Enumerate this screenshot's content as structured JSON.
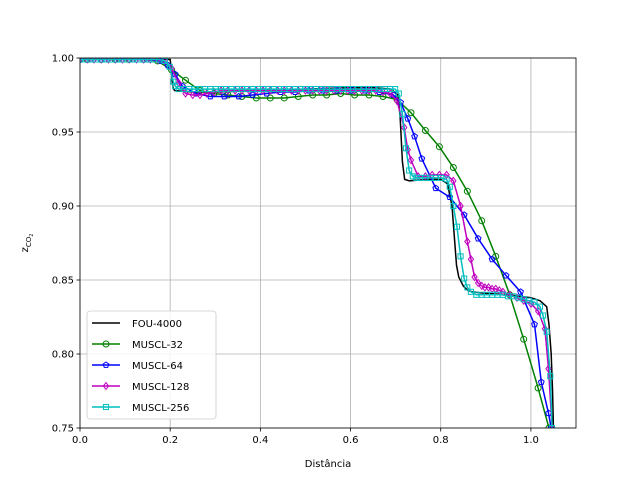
{
  "chart_data": {
    "type": "line",
    "xlabel": "Distância",
    "ylabel_main": "z",
    "ylabel_sub": "CO",
    "ylabel_subsub": "2",
    "xlim": [
      0.0,
      1.1
    ],
    "ylim": [
      0.75,
      1.0
    ],
    "xticks": [
      0.0,
      0.2,
      0.4,
      0.6,
      0.8,
      1.0
    ],
    "xtick_labels": [
      "0.0",
      "0.2",
      "0.4",
      "0.6",
      "0.8",
      "1.0"
    ],
    "yticks": [
      0.75,
      0.8,
      0.85,
      0.9,
      0.95,
      1.0
    ],
    "ytick_labels": [
      "0.75",
      "0.80",
      "0.85",
      "0.90",
      "0.95",
      "1.00"
    ],
    "grid": true,
    "legend_position": "lower-left",
    "series": [
      {
        "name": "FOU-4000",
        "color": "#000000",
        "marker": "none",
        "x": [
          0.0,
          0.2,
          0.203,
          0.206,
          0.21,
          0.25,
          0.3,
          0.4,
          0.5,
          0.6,
          0.65,
          0.69,
          0.705,
          0.71,
          0.715,
          0.72,
          0.73,
          0.77,
          0.8,
          0.815,
          0.825,
          0.83,
          0.835,
          0.84,
          0.85,
          0.86,
          0.87,
          0.9,
          0.95,
          1.0,
          1.02,
          1.035,
          1.04,
          1.045,
          1.048,
          1.05
        ],
        "y": [
          0.999,
          0.999,
          0.99,
          0.98,
          0.978,
          0.977,
          0.977,
          0.978,
          0.979,
          0.98,
          0.98,
          0.979,
          0.975,
          0.96,
          0.93,
          0.918,
          0.917,
          0.918,
          0.918,
          0.915,
          0.9,
          0.88,
          0.86,
          0.852,
          0.846,
          0.843,
          0.842,
          0.841,
          0.84,
          0.838,
          0.836,
          0.832,
          0.82,
          0.8,
          0.775,
          0.75
        ]
      },
      {
        "name": "MUSCL-32",
        "color": "#008000",
        "marker": "circle",
        "x": [
          0.0,
          0.016,
          0.047,
          0.078,
          0.109,
          0.141,
          0.172,
          0.203,
          0.234,
          0.266,
          0.297,
          0.328,
          0.359,
          0.391,
          0.422,
          0.453,
          0.484,
          0.516,
          0.547,
          0.578,
          0.609,
          0.641,
          0.672,
          0.703,
          0.734,
          0.766,
          0.797,
          0.828,
          0.859,
          0.891,
          0.922,
          0.953,
          0.984,
          1.016,
          1.04
        ],
        "y": [
          0.999,
          0.999,
          0.999,
          0.999,
          0.999,
          0.999,
          0.998,
          0.992,
          0.985,
          0.978,
          0.976,
          0.975,
          0.974,
          0.973,
          0.973,
          0.973,
          0.974,
          0.975,
          0.975,
          0.976,
          0.975,
          0.975,
          0.974,
          0.972,
          0.963,
          0.951,
          0.94,
          0.926,
          0.91,
          0.89,
          0.866,
          0.84,
          0.81,
          0.777,
          0.75
        ]
      },
      {
        "name": "MUSCL-64",
        "color": "#0000ff",
        "marker": "pentagon",
        "x": [
          0.0,
          0.023,
          0.055,
          0.086,
          0.117,
          0.148,
          0.18,
          0.195,
          0.211,
          0.227,
          0.258,
          0.289,
          0.32,
          0.352,
          0.383,
          0.414,
          0.445,
          0.477,
          0.508,
          0.539,
          0.57,
          0.602,
          0.633,
          0.664,
          0.695,
          0.711,
          0.727,
          0.742,
          0.758,
          0.789,
          0.82,
          0.852,
          0.883,
          0.914,
          0.945,
          0.977,
          1.008,
          1.023,
          1.039,
          1.045
        ],
        "y": [
          0.999,
          0.999,
          0.999,
          0.999,
          0.999,
          0.999,
          0.998,
          0.995,
          0.989,
          0.981,
          0.976,
          0.974,
          0.974,
          0.974,
          0.975,
          0.976,
          0.977,
          0.977,
          0.978,
          0.978,
          0.978,
          0.978,
          0.978,
          0.977,
          0.975,
          0.97,
          0.959,
          0.947,
          0.932,
          0.912,
          0.906,
          0.894,
          0.878,
          0.864,
          0.853,
          0.842,
          0.82,
          0.781,
          0.76,
          0.75
        ]
      },
      {
        "name": "MUSCL-128",
        "color": "#bf00bf",
        "marker": "diamond",
        "x": [
          0.0,
          0.016,
          0.031,
          0.047,
          0.063,
          0.078,
          0.094,
          0.109,
          0.125,
          0.141,
          0.156,
          0.172,
          0.188,
          0.203,
          0.219,
          0.234,
          0.25,
          0.266,
          0.281,
          0.297,
          0.313,
          0.328,
          0.344,
          0.359,
          0.375,
          0.391,
          0.406,
          0.422,
          0.438,
          0.453,
          0.469,
          0.484,
          0.5,
          0.516,
          0.531,
          0.547,
          0.563,
          0.578,
          0.594,
          0.609,
          0.625,
          0.641,
          0.656,
          0.672,
          0.688,
          0.703,
          0.719,
          0.727,
          0.734,
          0.75,
          0.766,
          0.781,
          0.797,
          0.813,
          0.828,
          0.844,
          0.859,
          0.867,
          0.875,
          0.883,
          0.891,
          0.898,
          0.906,
          0.914,
          0.922,
          0.93,
          0.938,
          0.953,
          0.969,
          0.984,
          1.0,
          1.016,
          1.031,
          1.039,
          1.047
        ],
        "y": [
          0.999,
          0.999,
          0.999,
          0.999,
          0.999,
          0.999,
          0.999,
          0.999,
          0.999,
          0.999,
          0.999,
          0.999,
          0.998,
          0.993,
          0.983,
          0.976,
          0.975,
          0.975,
          0.976,
          0.977,
          0.978,
          0.978,
          0.978,
          0.978,
          0.978,
          0.978,
          0.978,
          0.978,
          0.978,
          0.978,
          0.978,
          0.978,
          0.978,
          0.978,
          0.978,
          0.978,
          0.978,
          0.978,
          0.978,
          0.978,
          0.978,
          0.978,
          0.978,
          0.977,
          0.976,
          0.971,
          0.953,
          0.938,
          0.931,
          0.92,
          0.92,
          0.921,
          0.921,
          0.921,
          0.917,
          0.9,
          0.876,
          0.864,
          0.852,
          0.848,
          0.846,
          0.845,
          0.845,
          0.844,
          0.844,
          0.843,
          0.842,
          0.84,
          0.838,
          0.836,
          0.834,
          0.829,
          0.817,
          0.79,
          0.75
        ]
      },
      {
        "name": "MUSCL-256",
        "color": "#00bfbf",
        "marker": "square",
        "x": [
          0.0,
          0.012,
          0.023,
          0.035,
          0.047,
          0.059,
          0.07,
          0.082,
          0.094,
          0.105,
          0.117,
          0.129,
          0.141,
          0.152,
          0.164,
          0.176,
          0.188,
          0.199,
          0.207,
          0.211,
          0.219,
          0.23,
          0.242,
          0.254,
          0.266,
          0.277,
          0.289,
          0.301,
          0.313,
          0.324,
          0.336,
          0.348,
          0.359,
          0.371,
          0.383,
          0.395,
          0.406,
          0.418,
          0.43,
          0.441,
          0.453,
          0.465,
          0.477,
          0.488,
          0.5,
          0.512,
          0.523,
          0.535,
          0.547,
          0.559,
          0.57,
          0.582,
          0.594,
          0.605,
          0.617,
          0.629,
          0.641,
          0.652,
          0.664,
          0.676,
          0.688,
          0.699,
          0.707,
          0.715,
          0.723,
          0.73,
          0.738,
          0.746,
          0.754,
          0.766,
          0.777,
          0.789,
          0.801,
          0.813,
          0.82,
          0.828,
          0.836,
          0.844,
          0.852,
          0.859,
          0.867,
          0.879,
          0.891,
          0.902,
          0.914,
          0.926,
          0.938,
          0.949,
          0.961,
          0.973,
          0.984,
          0.996,
          1.008,
          1.02,
          1.027,
          1.035,
          1.043,
          1.047
        ],
        "y": [
          0.999,
          0.999,
          0.999,
          0.999,
          0.999,
          0.999,
          0.999,
          0.999,
          0.999,
          0.999,
          0.999,
          0.999,
          0.999,
          0.999,
          0.999,
          0.999,
          0.998,
          0.994,
          0.984,
          0.981,
          0.979,
          0.979,
          0.979,
          0.979,
          0.979,
          0.979,
          0.979,
          0.979,
          0.979,
          0.979,
          0.979,
          0.979,
          0.979,
          0.979,
          0.979,
          0.979,
          0.979,
          0.979,
          0.979,
          0.979,
          0.979,
          0.979,
          0.979,
          0.979,
          0.979,
          0.979,
          0.979,
          0.979,
          0.979,
          0.979,
          0.979,
          0.979,
          0.979,
          0.979,
          0.979,
          0.979,
          0.979,
          0.979,
          0.979,
          0.979,
          0.979,
          0.979,
          0.976,
          0.962,
          0.939,
          0.924,
          0.92,
          0.919,
          0.919,
          0.919,
          0.919,
          0.919,
          0.919,
          0.918,
          0.913,
          0.9,
          0.886,
          0.866,
          0.851,
          0.845,
          0.842,
          0.84,
          0.84,
          0.84,
          0.84,
          0.84,
          0.84,
          0.839,
          0.839,
          0.838,
          0.837,
          0.836,
          0.835,
          0.832,
          0.826,
          0.815,
          0.785,
          0.75
        ]
      }
    ]
  }
}
